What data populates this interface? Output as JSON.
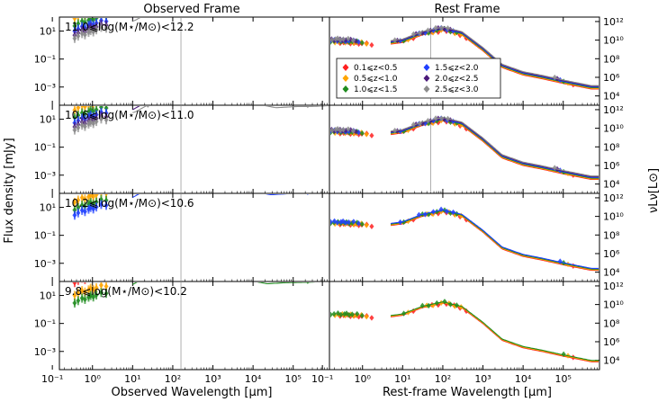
{
  "chart_data": {
    "type": "scatter",
    "titles": [
      "Observed Frame",
      "Rest Frame"
    ],
    "xlabel_left": "Observed Wavelength [μm]",
    "xlabel_right": "Rest-frame Wavelength [μm]",
    "ylabel_left": "Flux density [mJy]",
    "ylabel_right": "νLν[L⊙]",
    "xscale": "log",
    "yscale": "log",
    "xlim": [
      0.15,
      800000
    ],
    "ylim_left": [
      5e-05,
      100
    ],
    "ylim_right": [
      1000,
      3000000000000.0
    ],
    "xticks": [
      "10⁻¹",
      "10⁰",
      "10¹",
      "10²",
      "10³",
      "10⁴",
      "10⁵"
    ],
    "yticks_left": [
      "10¹",
      "10⁻¹",
      "10⁻³"
    ],
    "yticks_right": [
      "10¹²",
      "10¹⁰",
      "10⁸",
      "10⁶",
      "10⁴"
    ],
    "mass_bins": [
      "11.0⩽log(M⋆/M⊙)<12.2",
      "10.6⩽log(M⋆/M⊙)<11.0",
      "10.2⩽log(M⋆/M⊙)<10.6",
      "9.8⩽log(M⋆/M⊙)<10.2"
    ],
    "legend": {
      "location": "upper-left of top rest-frame panel",
      "entries": [
        {
          "label": "0.1⩽z<0.5",
          "color": "#ff2020"
        },
        {
          "label": "0.5⩽z<1.0",
          "color": "#ffa500"
        },
        {
          "label": "1.0⩽z<1.5",
          "color": "#1f8c1f"
        },
        {
          "label": "1.5⩽z<2.0",
          "color": "#2040ff"
        },
        {
          "label": "2.0⩽z<2.5",
          "color": "#4b1a7a"
        },
        {
          "label": "2.5⩽z<3.0",
          "color": "#8c8c8c"
        }
      ]
    },
    "series": [
      {
        "z": 0.3,
        "color": "#ff2020"
      },
      {
        "z": 0.75,
        "color": "#ffa500"
      },
      {
        "z": 1.25,
        "color": "#1f8c1f"
      },
      {
        "z": 1.75,
        "color": "#2040ff"
      },
      {
        "z": 2.25,
        "color": "#4b1a7a"
      },
      {
        "z": 2.75,
        "color": "#8c8c8c"
      }
    ],
    "sed_model_rest": {
      "wavelength_um": [
        0.3,
        1,
        3,
        10,
        30,
        100,
        300,
        1000,
        3000,
        10000,
        30000,
        100000,
        500000
      ],
      "log_nuLnu_top": [
        9.7,
        9.6,
        9.4,
        9.7,
        10.5,
        11.0,
        10.5,
        8.8,
        7.0,
        6.2,
        5.8,
        5.3,
        4.7
      ]
    },
    "zmax_by_bin": [
      3.0,
      3.0,
      2.0,
      1.5
    ],
    "bin_level_offset": [
      0.0,
      -0.25,
      -0.55,
      -0.9
    ],
    "vertical_line": {
      "observed_um": 160,
      "rest_um": 50
    }
  }
}
